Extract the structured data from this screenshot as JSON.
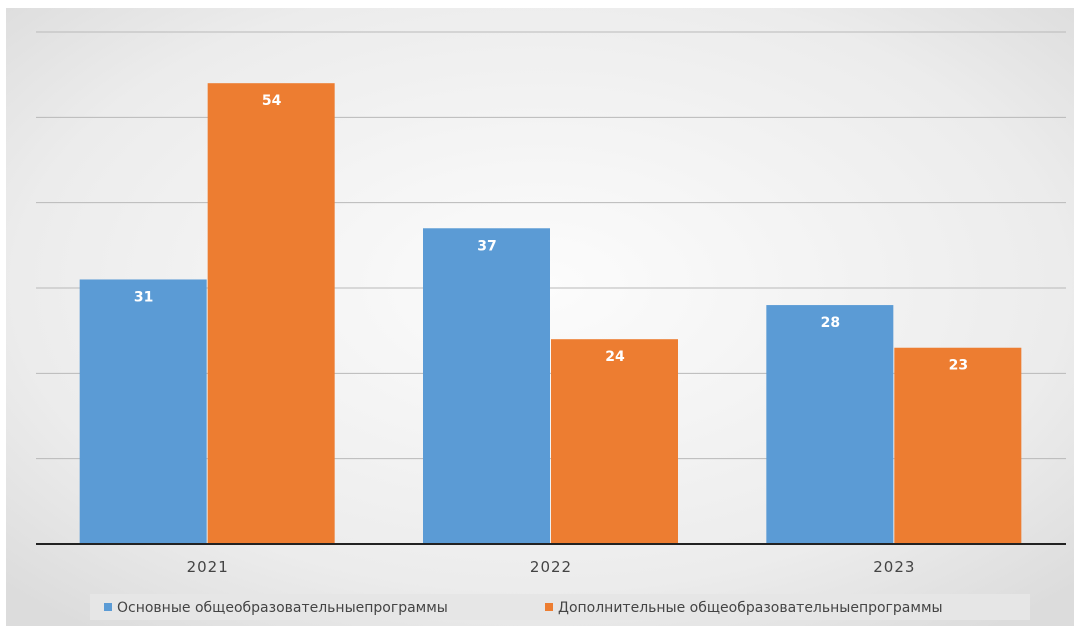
{
  "chart_data": {
    "type": "bar",
    "categories": [
      "2021",
      "2022",
      "2023"
    ],
    "series": [
      {
        "name": "Основные общеобразовательныепрограммы",
        "values": [
          31,
          37,
          28
        ],
        "color": "#5b9bd5"
      },
      {
        "name": "Дополнительные общеобразовательныепрограммы",
        "values": [
          54,
          24,
          23
        ],
        "color": "#ed7d31"
      }
    ],
    "title": "",
    "xlabel": "",
    "ylabel": "",
    "ylim": [
      0,
      60
    ],
    "grid": true,
    "legend_position": "bottom",
    "data_labels": true
  }
}
